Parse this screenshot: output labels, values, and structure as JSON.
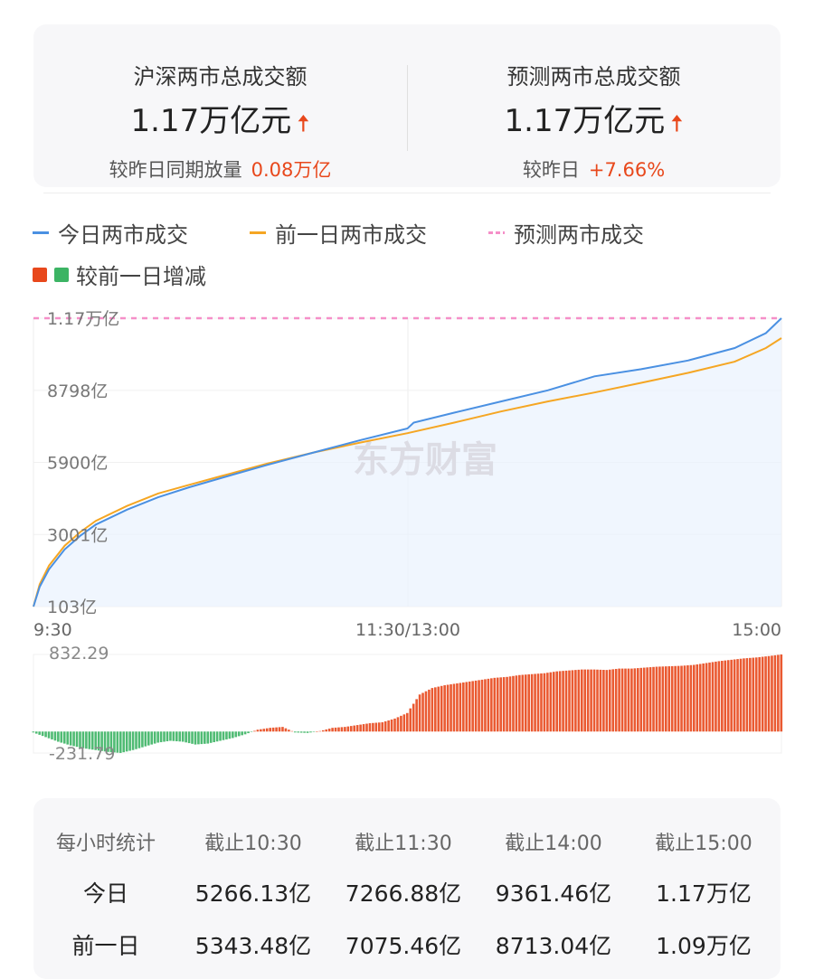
{
  "summary": {
    "left": {
      "title": "沪深两市总成交额",
      "value": "1.17万亿元",
      "compare_label": "较昨日同期放量",
      "compare_value": "0.08万亿",
      "arrow_icon": "arrow-up-icon"
    },
    "right": {
      "title": "预测两市总成交额",
      "value": "1.17万亿元",
      "compare_label": "较昨日",
      "compare_value": "+7.66%",
      "arrow_icon": "arrow-up-icon"
    }
  },
  "colors": {
    "today": "#4a90e2",
    "yesterday": "#f5a623",
    "forecast": "#f58fc8",
    "up": "#e8481c",
    "down": "#3cb464"
  },
  "legend": [
    "今日两市成交",
    "前一日两市成交",
    "预测两市成交",
    "较前一日增减"
  ],
  "watermark": "东方财富",
  "chart_data": [
    {
      "type": "line",
      "ylim": [
        103,
        11700
      ],
      "y_ticks": [
        "1.17万亿",
        "8798亿",
        "5900亿",
        "3001亿",
        "103亿"
      ],
      "y_tick_values": [
        11700,
        8798,
        5900,
        3001,
        103
      ],
      "x_ticks": [
        "9:30",
        "11:30/13:00",
        "15:00"
      ],
      "x_unit": "trading minutes",
      "xlim": [
        0,
        240
      ],
      "forecast_line": 11700,
      "series": [
        {
          "name": "今日两市成交",
          "x": [
            0,
            2,
            5,
            10,
            15,
            20,
            30,
            40,
            50,
            60,
            75,
            90,
            105,
            120,
            122,
            135,
            150,
            165,
            180,
            195,
            210,
            225,
            235,
            240
          ],
          "y": [
            103,
            900,
            1600,
            2400,
            2950,
            3400,
            4000,
            4500,
            4900,
            5266,
            5800,
            6300,
            6800,
            7266,
            7500,
            7900,
            8350,
            8800,
            9361,
            9650,
            10000,
            10500,
            11100,
            11700
          ]
        },
        {
          "name": "前一日两市成交",
          "x": [
            0,
            2,
            5,
            10,
            15,
            20,
            30,
            40,
            50,
            60,
            75,
            90,
            105,
            120,
            135,
            150,
            165,
            180,
            195,
            210,
            225,
            235,
            240
          ],
          "y": [
            103,
            1000,
            1750,
            2550,
            3100,
            3550,
            4150,
            4650,
            5000,
            5343,
            5850,
            6300,
            6700,
            7075,
            7500,
            7950,
            8350,
            8713,
            9100,
            9500,
            9950,
            10500,
            10900
          ]
        }
      ]
    },
    {
      "type": "bar",
      "name": "较前一日增减",
      "ylim": [
        -231.79,
        832.29
      ],
      "y_ticks": [
        "832.29",
        "-231.79"
      ],
      "x_step_minutes": 4,
      "values": [
        -10,
        -60,
        -110,
        -150,
        -180,
        -200,
        -220,
        -231,
        -200,
        -160,
        -120,
        -100,
        -110,
        -140,
        -130,
        -100,
        -70,
        -30,
        20,
        40,
        50,
        -10,
        -15,
        5,
        40,
        50,
        70,
        90,
        100,
        140,
        200,
        400,
        470,
        500,
        520,
        540,
        560,
        580,
        590,
        610,
        620,
        630,
        650,
        660,
        670,
        670,
        665,
        680,
        680,
        690,
        700,
        705,
        710,
        720,
        740,
        760,
        775,
        790,
        800,
        815,
        832
      ]
    }
  ],
  "table": {
    "headers": [
      "每小时统计",
      "截止10:30",
      "截止11:30",
      "截止14:00",
      "截止15:00"
    ],
    "rows": [
      {
        "label": "今日",
        "values": [
          "5266.13亿",
          "7266.88亿",
          "9361.46亿",
          "1.17万亿"
        ]
      },
      {
        "label": "前一日",
        "values": [
          "5343.48亿",
          "7075.46亿",
          "8713.04亿",
          "1.09万亿"
        ]
      }
    ]
  }
}
